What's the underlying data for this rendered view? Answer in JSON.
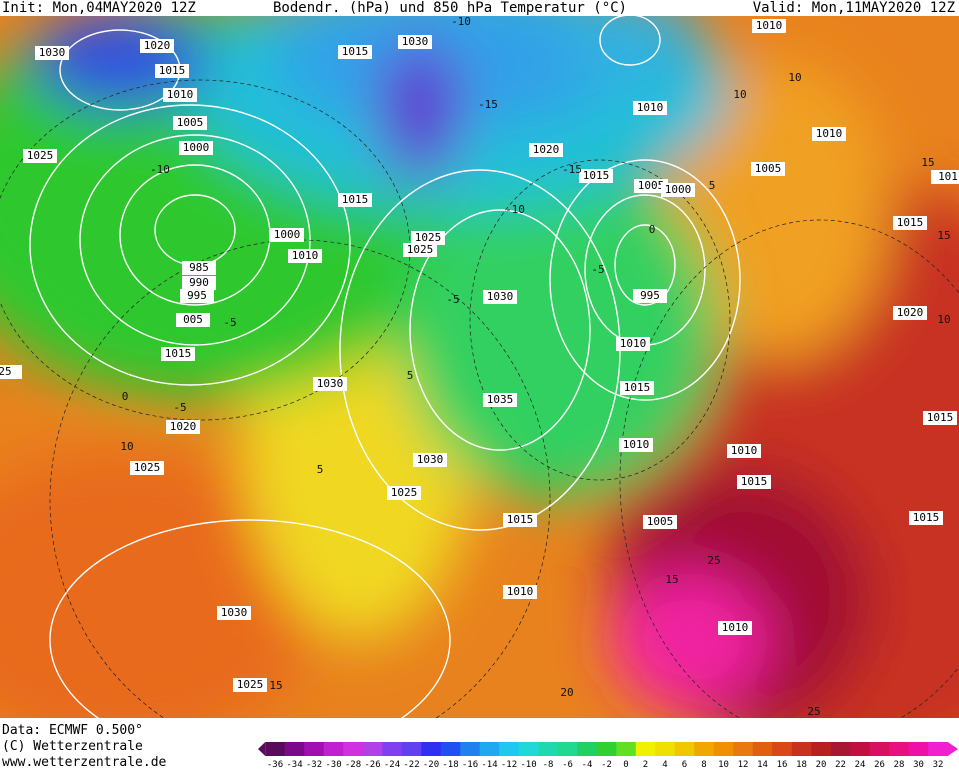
{
  "header": {
    "init": "Init: Mon,04MAY2020 12Z",
    "title": "Bodendr. (hPa) und 850 hPa Temperatur (°C)",
    "valid": "Valid: Mon,11MAY2020 12Z"
  },
  "footer": {
    "data": "Data: ECMWF  0.500°",
    "copyright": "(C) Wetterzentrale",
    "url": "www.wetterzentrale.de"
  },
  "isobar_labels": [
    "1030",
    "1020",
    "1015",
    "1010",
    "1005",
    "1000",
    "1025",
    "985",
    "990",
    "995",
    "005",
    "1015",
    "1000",
    "1010",
    "1015",
    "1015",
    "1030",
    "1025",
    "1025",
    "1030",
    "1035",
    "1030",
    "1020",
    "1025",
    "1030",
    "1025",
    "1015",
    "1010",
    "1030",
    "1025",
    "1020",
    "1010",
    "1015",
    "1005",
    "1000",
    "995",
    "1010",
    "1015",
    "1010",
    "1010",
    "1015",
    "1005",
    "1010",
    "1010",
    "1010",
    "1005",
    "1015",
    "1020",
    "1015",
    "1015",
    "101",
    "25"
  ],
  "temperature_labels": [
    "-10",
    "-15",
    "-10",
    "-15",
    "-10",
    "-5",
    "-5",
    "0",
    "-5",
    "10",
    "5",
    "5",
    "10",
    "10",
    "5",
    "0",
    "-5",
    "15",
    "15",
    "10",
    "15",
    "20",
    "25",
    "25",
    "15"
  ],
  "colorbar": {
    "ticks": [
      -36,
      -34,
      -32,
      -30,
      -28,
      -26,
      -24,
      -22,
      -20,
      -18,
      -16,
      -14,
      -12,
      -10,
      -8,
      -6,
      -4,
      -2,
      0,
      2,
      4,
      6,
      8,
      10,
      12,
      14,
      16,
      18,
      20,
      22,
      24,
      26,
      28,
      30,
      32
    ],
    "colors": [
      "#5a0a5a",
      "#7a0a8a",
      "#a010b0",
      "#c020d0",
      "#d030e0",
      "#b040e8",
      "#8040f0",
      "#6040f0",
      "#3030f0",
      "#2050f0",
      "#2080f0",
      "#20a8f0",
      "#20c8f0",
      "#20d8d8",
      "#20d8b0",
      "#20d890",
      "#20d060",
      "#30d030",
      "#60e020",
      "#f0f000",
      "#f0e000",
      "#f0c800",
      "#f0a800",
      "#f09000",
      "#e87810",
      "#e06010",
      "#d84818",
      "#c83020",
      "#b82020",
      "#a81830",
      "#c01040",
      "#d81060",
      "#e81080",
      "#f010a8",
      "#f020d0"
    ]
  }
}
